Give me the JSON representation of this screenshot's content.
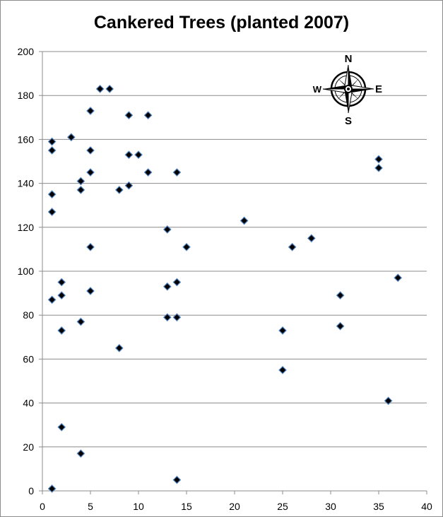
{
  "chart_data": {
    "type": "scatter",
    "title": "Cankered Trees (planted 2007)",
    "xlabel": "",
    "ylabel": "",
    "xlim": [
      0,
      40
    ],
    "ylim": [
      0,
      200
    ],
    "x_ticks": [
      0,
      5,
      10,
      15,
      20,
      25,
      30,
      35,
      40
    ],
    "y_ticks": [
      0,
      20,
      40,
      60,
      80,
      100,
      120,
      140,
      160,
      180,
      200
    ],
    "grid": "horizontal",
    "legend": "none",
    "marker": "diamond",
    "marker_color": "#000000",
    "marker_edge_color": "#4f81bd",
    "points": [
      {
        "x": 1,
        "y": 1
      },
      {
        "x": 1,
        "y": 87
      },
      {
        "x": 1,
        "y": 127
      },
      {
        "x": 1,
        "y": 135
      },
      {
        "x": 1,
        "y": 155
      },
      {
        "x": 1,
        "y": 159
      },
      {
        "x": 2,
        "y": 29
      },
      {
        "x": 2,
        "y": 73
      },
      {
        "x": 2,
        "y": 89
      },
      {
        "x": 2,
        "y": 95
      },
      {
        "x": 3,
        "y": 161
      },
      {
        "x": 4,
        "y": 17
      },
      {
        "x": 4,
        "y": 77
      },
      {
        "x": 4,
        "y": 137
      },
      {
        "x": 4,
        "y": 141
      },
      {
        "x": 5,
        "y": 91
      },
      {
        "x": 5,
        "y": 111
      },
      {
        "x": 5,
        "y": 145
      },
      {
        "x": 5,
        "y": 155
      },
      {
        "x": 5,
        "y": 173
      },
      {
        "x": 6,
        "y": 183
      },
      {
        "x": 7,
        "y": 183
      },
      {
        "x": 8,
        "y": 65
      },
      {
        "x": 8,
        "y": 137
      },
      {
        "x": 9,
        "y": 139
      },
      {
        "x": 9,
        "y": 153
      },
      {
        "x": 9,
        "y": 171
      },
      {
        "x": 10,
        "y": 153
      },
      {
        "x": 11,
        "y": 145
      },
      {
        "x": 11,
        "y": 171
      },
      {
        "x": 13,
        "y": 79
      },
      {
        "x": 13,
        "y": 93
      },
      {
        "x": 13,
        "y": 119
      },
      {
        "x": 14,
        "y": 5
      },
      {
        "x": 14,
        "y": 79
      },
      {
        "x": 14,
        "y": 95
      },
      {
        "x": 14,
        "y": 145
      },
      {
        "x": 15,
        "y": 111
      },
      {
        "x": 21,
        "y": 123
      },
      {
        "x": 25,
        "y": 55
      },
      {
        "x": 25,
        "y": 73
      },
      {
        "x": 26,
        "y": 111
      },
      {
        "x": 28,
        "y": 115
      },
      {
        "x": 31,
        "y": 75
      },
      {
        "x": 31,
        "y": 89
      },
      {
        "x": 35,
        "y": 147
      },
      {
        "x": 35,
        "y": 151
      },
      {
        "x": 36,
        "y": 41
      },
      {
        "x": 37,
        "y": 97
      }
    ]
  },
  "compass": {
    "icon": "compass-rose-icon",
    "north": "N",
    "south": "S",
    "east": "E",
    "west": "W"
  }
}
